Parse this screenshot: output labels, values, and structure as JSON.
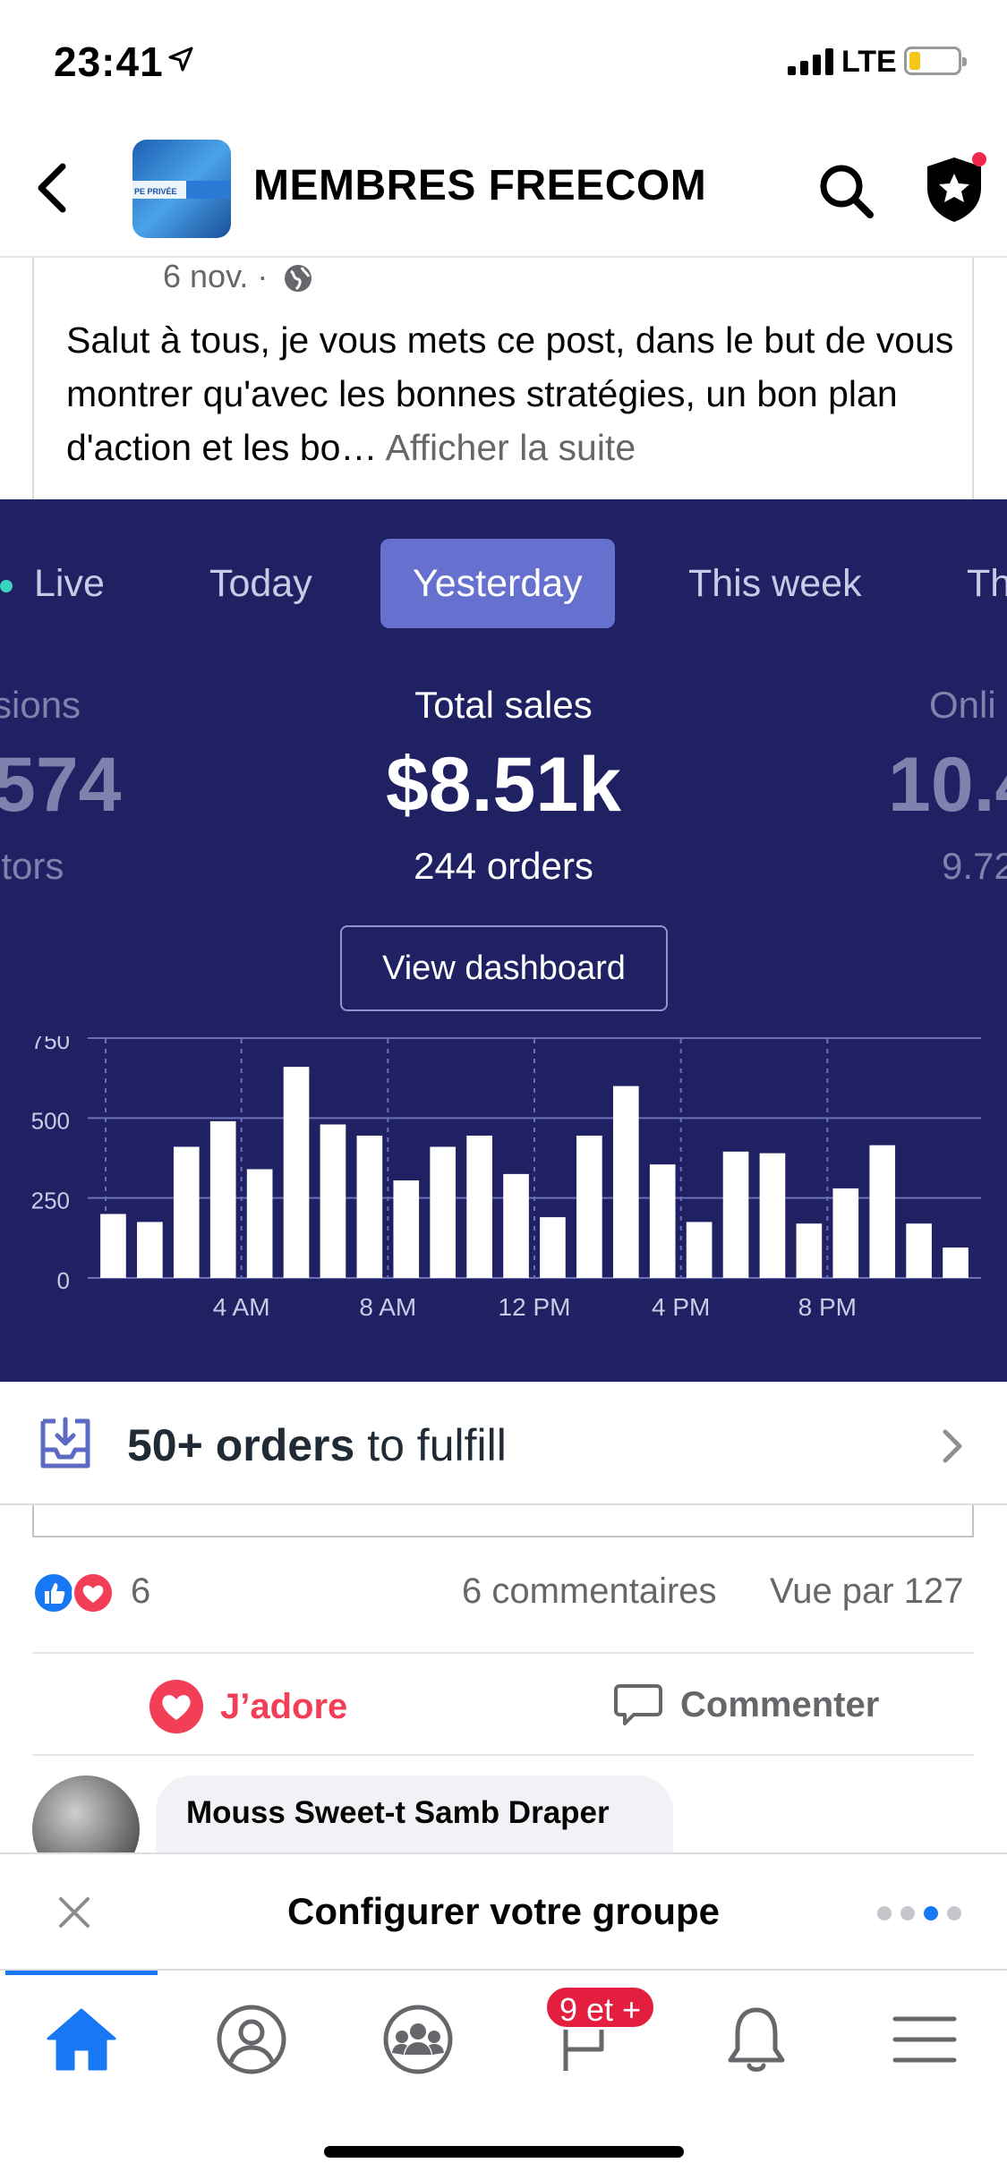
{
  "status_bar": {
    "time": "23:41",
    "network": "LTE"
  },
  "header": {
    "title": "MEMBRES FREECOM",
    "avatar_caption": "PE PRIVÉE"
  },
  "post": {
    "date": "6 nov. ·",
    "text": "Salut à tous, je vous mets ce post, dans le but de vous montrer qu'avec les bonnes stratégies, un bon plan d'action et les bo…",
    "see_more": "Afficher la suite"
  },
  "embedded_screenshot": {
    "tabs": [
      {
        "label": "Live",
        "active": false
      },
      {
        "label": "Today",
        "active": false
      },
      {
        "label": "Yesterday",
        "active": true
      },
      {
        "label": "This week",
        "active": false
      },
      {
        "label": "Th",
        "active": false
      }
    ],
    "metrics": {
      "left": {
        "label": "sions",
        "value": "574",
        "sub": "itors"
      },
      "center": {
        "label": "Total sales",
        "value": "$8.51k",
        "sub": "244 orders"
      },
      "right": {
        "label": "Onli",
        "value": "10.4",
        "sub": "9.72"
      }
    },
    "view_dashboard": "View dashboard"
  },
  "chart_data": {
    "type": "bar",
    "x": [
      "12 AM",
      "1 AM",
      "2 AM",
      "3 AM",
      "4 AM",
      "5 AM",
      "6 AM",
      "7 AM",
      "8 AM",
      "9 AM",
      "10 AM",
      "11 AM",
      "12 PM",
      "1 PM",
      "2 PM",
      "3 PM",
      "4 PM",
      "5 PM",
      "6 PM",
      "7 PM",
      "8 PM",
      "9 PM",
      "10 PM",
      "11 PM"
    ],
    "values": [
      200,
      175,
      410,
      490,
      340,
      660,
      480,
      445,
      305,
      410,
      445,
      325,
      190,
      445,
      600,
      355,
      175,
      395,
      390,
      170,
      280,
      415,
      170,
      95
    ],
    "tick_labels": [
      "0",
      "250",
      "500",
      "750"
    ],
    "x_tick_labels": [
      "4 AM",
      "8 AM",
      "12 PM",
      "4 PM",
      "8 PM"
    ],
    "ylim": [
      0,
      750
    ],
    "grid": true,
    "bar_color": "#ffffff",
    "background": "#1f2163"
  },
  "fulfill": {
    "bold": "50+ orders",
    "rest": " to fulfill"
  },
  "reactions": {
    "count": "6",
    "comments": "6 commentaires",
    "views": "Vue par 127"
  },
  "actions": {
    "love": "J’adore",
    "comment": "Commenter"
  },
  "comment": {
    "author": "Mouss Sweet-t Samb Draper"
  },
  "config_bar": {
    "text": "Configurer votre groupe"
  },
  "tabbar": {
    "badge": "9 et +"
  },
  "colors": {
    "accent": "#1877f2",
    "love": "#f33e58",
    "dashboard_bg": "#1f2163",
    "active_tab": "#6670cf"
  }
}
